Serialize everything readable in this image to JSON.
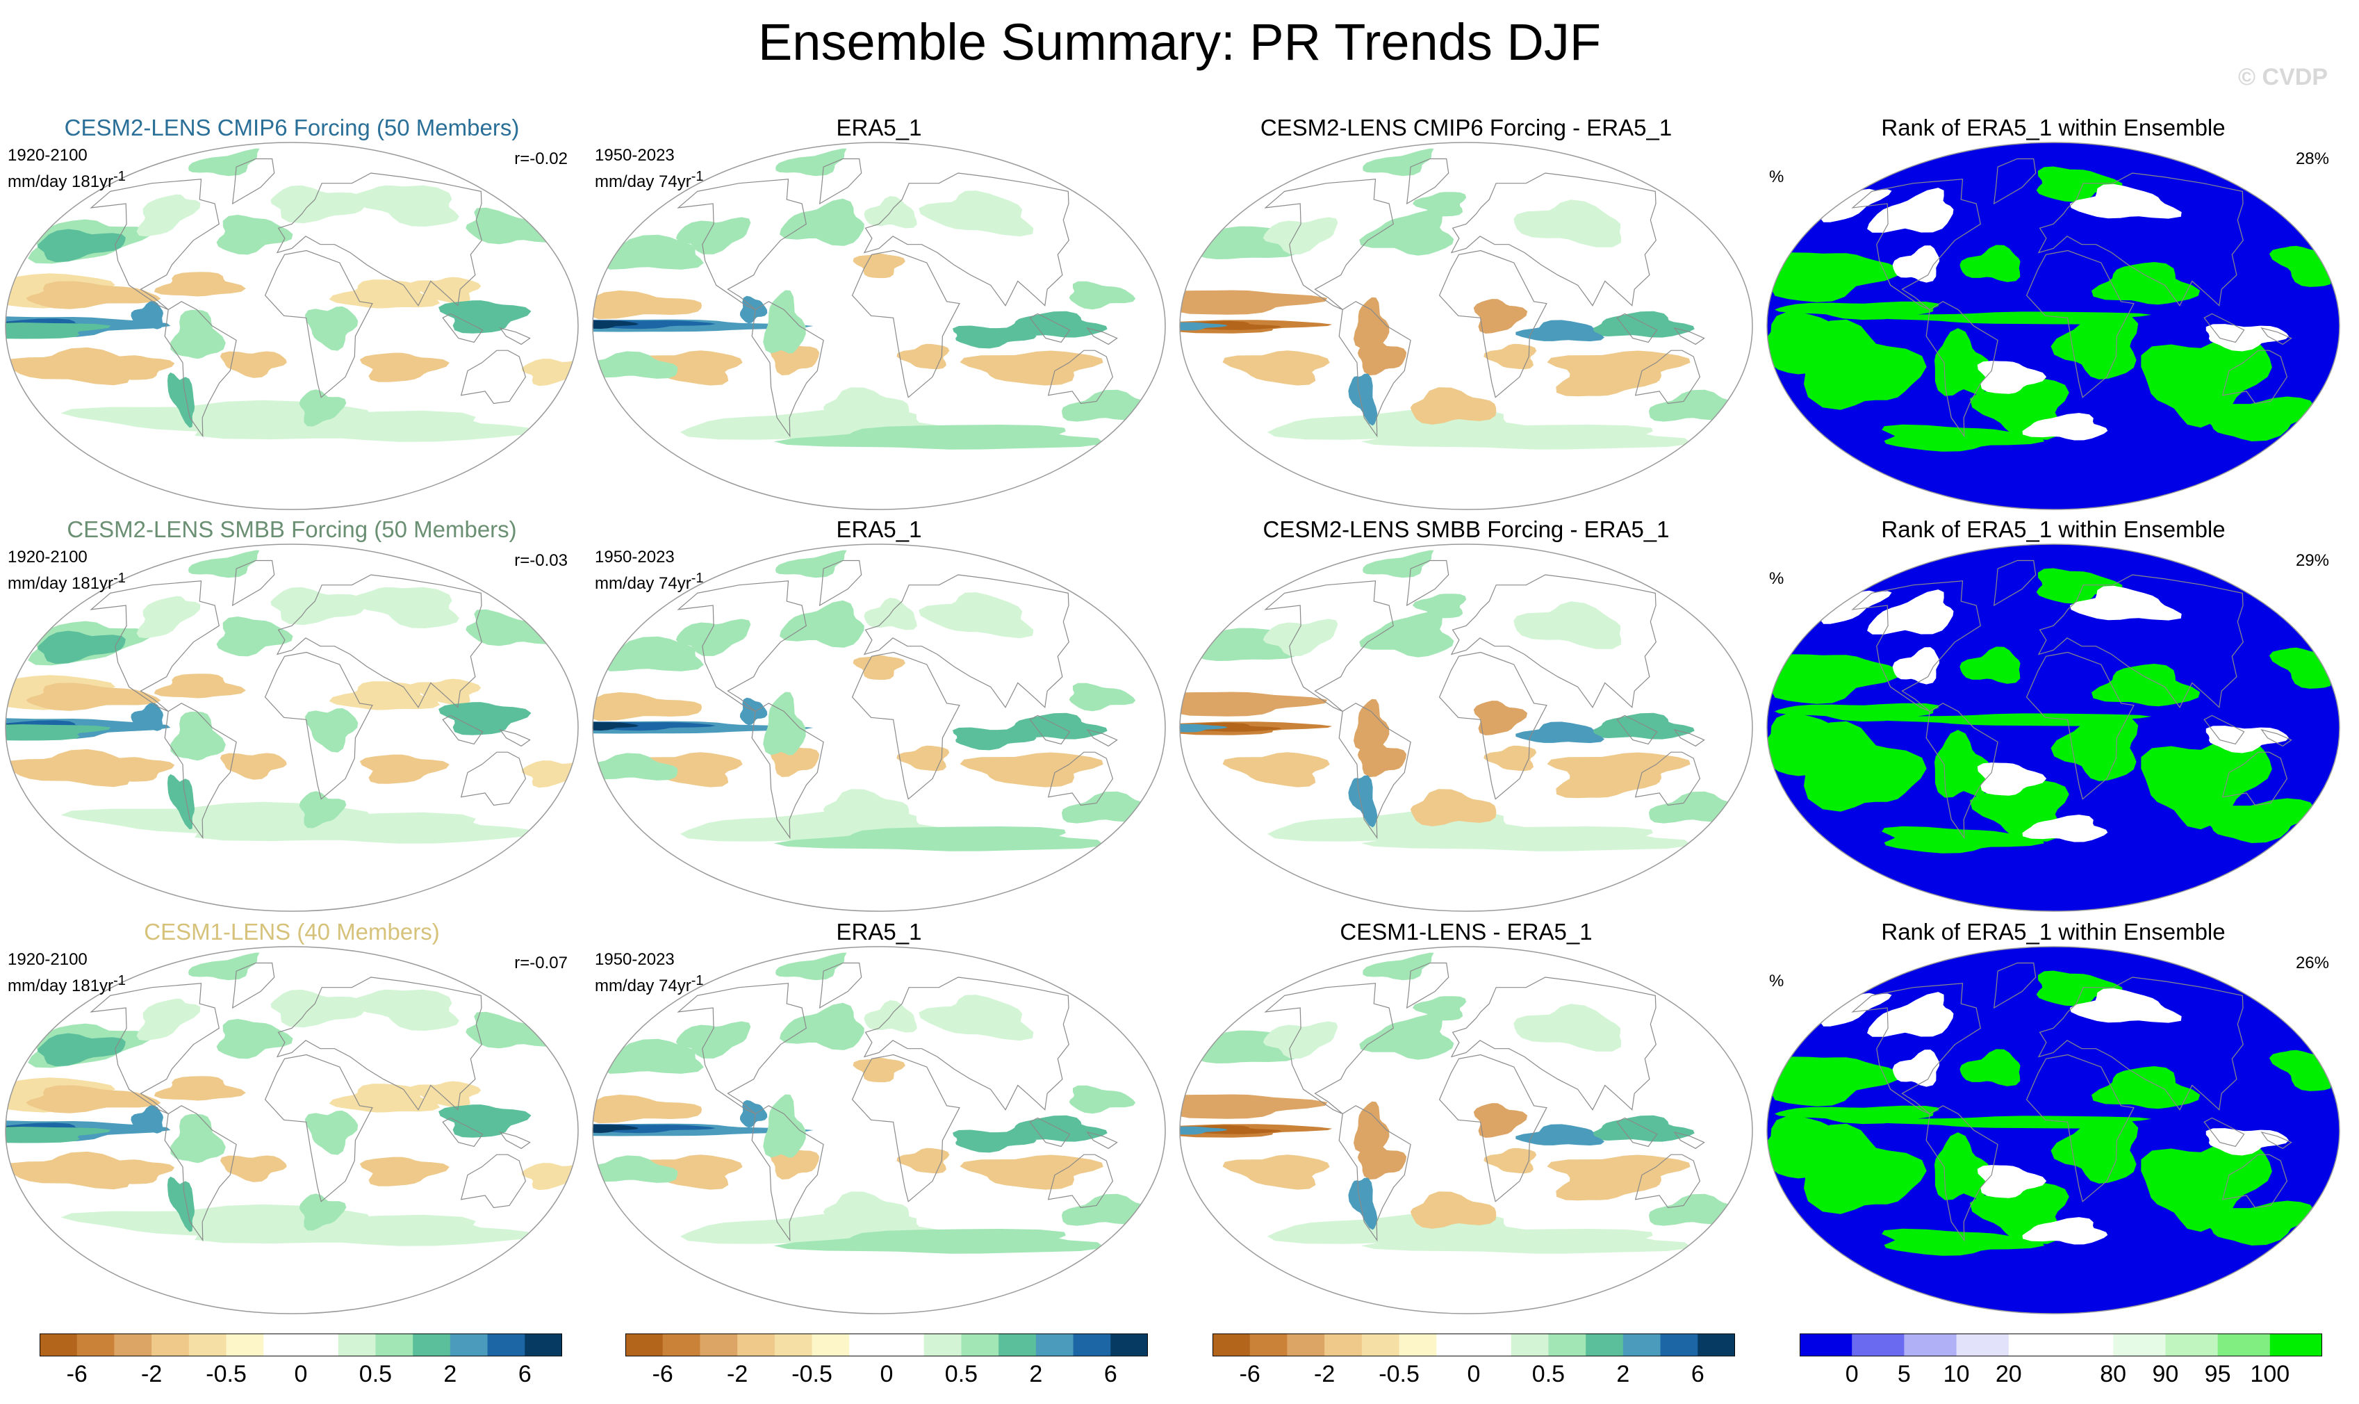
{
  "title": "Ensemble Summary: PR Trends DJF",
  "copyright": "© CVDP",
  "rows": [
    {
      "model": {
        "title": "CESM2-LENS CMIP6 Forcing (50 Members)",
        "period": "1920-2100",
        "units": "mm/day 181yr",
        "units_sup": "-1",
        "corr": "r=-0.02",
        "title_color": "#2a6f97"
      },
      "obs": {
        "title": "ERA5_1",
        "period": "1950-2023",
        "units": "mm/day 74yr",
        "units_sup": "-1"
      },
      "diff": {
        "title": "CESM2-LENS CMIP6 Forcing - ERA5_1"
      },
      "rank": {
        "title": "Rank of ERA5_1 within Ensemble",
        "unit": "%",
        "pct": "28%"
      }
    },
    {
      "model": {
        "title": "CESM2-LENS SMBB Forcing (50 Members)",
        "period": "1920-2100",
        "units": "mm/day 181yr",
        "units_sup": "-1",
        "corr": "r=-0.03",
        "title_color": "#6a8f72"
      },
      "obs": {
        "title": "ERA5_1",
        "period": "1950-2023",
        "units": "mm/day 74yr",
        "units_sup": "-1"
      },
      "diff": {
        "title": "CESM2-LENS SMBB Forcing - ERA5_1"
      },
      "rank": {
        "title": "Rank of ERA5_1 within Ensemble",
        "unit": "%",
        "pct": "29%"
      }
    },
    {
      "model": {
        "title": "CESM1-LENS (40 Members)",
        "period": "1920-2100",
        "units": "mm/day 181yr",
        "units_sup": "-1",
        "corr": "r=-0.07",
        "title_color": "#d6c27a"
      },
      "obs": {
        "title": "ERA5_1",
        "period": "1950-2023",
        "units": "mm/day 74yr",
        "units_sup": "-1"
      },
      "diff": {
        "title": "CESM1-LENS - ERA5_1"
      },
      "rank": {
        "title": "Rank of ERA5_1 within Ensemble",
        "unit": "%",
        "pct": "26%"
      }
    }
  ],
  "trend_colorbar": {
    "colors": [
      "#b3651c",
      "#c98238",
      "#dca565",
      "#eec98a",
      "#f5dfa4",
      "#fdf6c8",
      "#ffffff",
      "#ffffff",
      "#d3f5d6",
      "#a3e6b6",
      "#5cbf9b",
      "#4a9bbc",
      "#1d66a5",
      "#063a62"
    ],
    "ticks": [
      "-6",
      "-2",
      "-0.5",
      "0",
      "0.5",
      "2",
      "6"
    ],
    "tick_index": [
      1,
      3,
      5,
      7,
      9,
      11,
      13
    ]
  },
  "rank_colorbar": {
    "colors": [
      "#0000e6",
      "#6a6af0",
      "#b0b0f6",
      "#e2e2fb",
      "#ffffff",
      "#ffffff",
      "#e6fbe6",
      "#c0f5c0",
      "#80ee80",
      "#00ee00"
    ],
    "ticks": [
      "0",
      "5",
      "10",
      "20",
      "80",
      "90",
      "95",
      "100"
    ],
    "tick_index": [
      1,
      2,
      3,
      4,
      6,
      7,
      8,
      9
    ]
  }
}
